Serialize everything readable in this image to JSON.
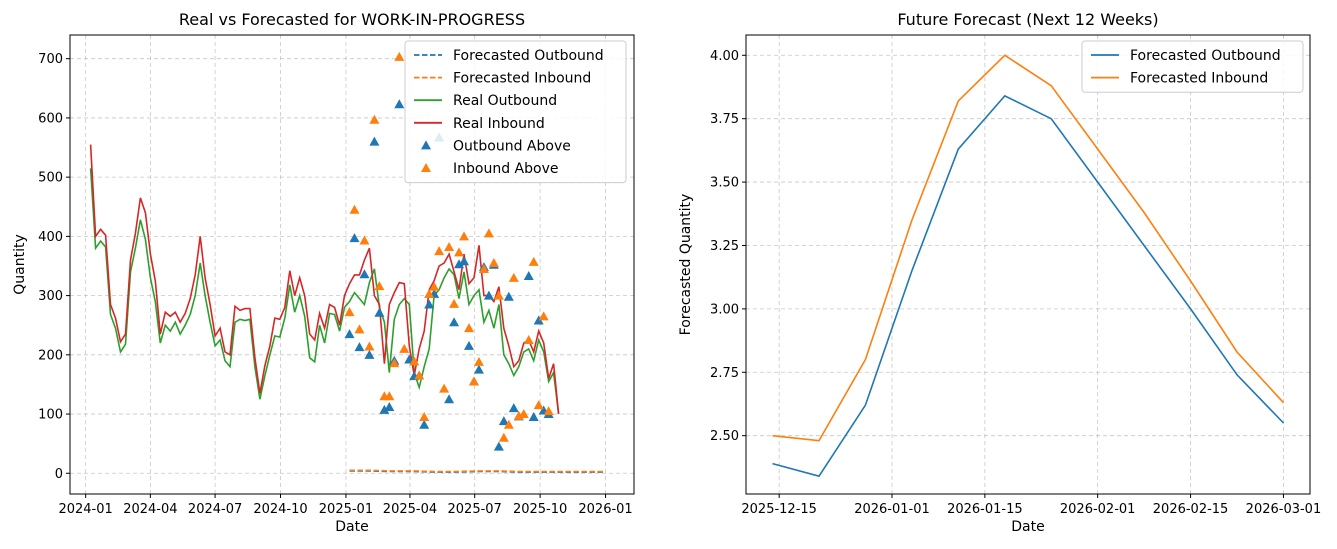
{
  "colors": {
    "outbound": "#1f77b4",
    "inbound": "#ff7f0e",
    "real_outbound": "#2ca02c",
    "real_inbound": "#d62728"
  },
  "chart_data": [
    {
      "type": "line",
      "title": "Real vs Forecasted for WORK-IN-PROGRESS",
      "xlabel": "Date",
      "ylabel": "Quantity",
      "xlim": [
        "2023-12-10",
        "2026-02-10"
      ],
      "ylim": [
        -35,
        740
      ],
      "xticks": [
        "2024-01",
        "2024-04",
        "2024-07",
        "2024-10",
        "2025-01",
        "2025-04",
        "2025-07",
        "2025-10",
        "2026-01"
      ],
      "yticks": [
        0,
        100,
        200,
        300,
        400,
        500,
        600,
        700
      ],
      "grid": true,
      "legend_position": "upper right",
      "legend": [
        "Forecasted Outbound",
        "Forecasted Inbound",
        "Real Outbound",
        "Real Inbound",
        "Outbound Above",
        "Inbound Above"
      ],
      "real_outbound": {
        "x": [
          "2024-01-08",
          "2024-01-15",
          "2024-01-22",
          "2024-01-29",
          "2024-02-05",
          "2024-02-12",
          "2024-02-19",
          "2024-02-26",
          "2024-03-04",
          "2024-03-11",
          "2024-03-18",
          "2024-03-25",
          "2024-04-01",
          "2024-04-08",
          "2024-04-15",
          "2024-04-22",
          "2024-04-29",
          "2024-05-06",
          "2024-05-13",
          "2024-05-20",
          "2024-05-27",
          "2024-06-03",
          "2024-06-10",
          "2024-06-17",
          "2024-06-24",
          "2024-07-01",
          "2024-07-08",
          "2024-07-15",
          "2024-07-22",
          "2024-07-29",
          "2024-08-05",
          "2024-08-12",
          "2024-08-19",
          "2024-08-26",
          "2024-09-02",
          "2024-09-09",
          "2024-09-16",
          "2024-09-23",
          "2024-09-30",
          "2024-10-07",
          "2024-10-14",
          "2024-10-21",
          "2024-10-28",
          "2024-11-04",
          "2024-11-11",
          "2024-11-18",
          "2024-11-25",
          "2024-12-02",
          "2024-12-09",
          "2024-12-16",
          "2024-12-23",
          "2024-12-30",
          "2025-01-06",
          "2025-01-13",
          "2025-01-20",
          "2025-01-27",
          "2025-02-03",
          "2025-02-10",
          "2025-02-17",
          "2025-02-24",
          "2025-03-03",
          "2025-03-10",
          "2025-03-17",
          "2025-03-24",
          "2025-03-31",
          "2025-04-07",
          "2025-04-14",
          "2025-04-21",
          "2025-04-28",
          "2025-05-05",
          "2025-05-12",
          "2025-05-19",
          "2025-05-26",
          "2025-06-02",
          "2025-06-09",
          "2025-06-16",
          "2025-06-23",
          "2025-06-30",
          "2025-07-07",
          "2025-07-14",
          "2025-07-21",
          "2025-07-28",
          "2025-08-04",
          "2025-08-11",
          "2025-08-18",
          "2025-08-25",
          "2025-09-01",
          "2025-09-08",
          "2025-09-15",
          "2025-09-22",
          "2025-09-29",
          "2025-10-06",
          "2025-10-13",
          "2025-10-20",
          "2025-10-27"
        ],
        "y": [
          515,
          380,
          392,
          382,
          268,
          245,
          205,
          218,
          340,
          380,
          428,
          395,
          330,
          290,
          220,
          250,
          240,
          255,
          235,
          250,
          268,
          300,
          355,
          300,
          255,
          215,
          225,
          190,
          180,
          255,
          260,
          258,
          260,
          180,
          125,
          165,
          200,
          232,
          230,
          262,
          318,
          272,
          300,
          265,
          195,
          188,
          250,
          220,
          270,
          268,
          240,
          280,
          290,
          305,
          295,
          285,
          322,
          345,
          280,
          255,
          170,
          260,
          285,
          295,
          285,
          170,
          145,
          180,
          210,
          300,
          310,
          330,
          345,
          335,
          295,
          340,
          285,
          300,
          310,
          255,
          275,
          245,
          285,
          200,
          185,
          165,
          180,
          205,
          210,
          190,
          225,
          205,
          155,
          170,
          100
        ]
      },
      "real_inbound": {
        "x": [
          "2024-01-08",
          "2024-01-15",
          "2024-01-22",
          "2024-01-29",
          "2024-02-05",
          "2024-02-12",
          "2024-02-19",
          "2024-02-26",
          "2024-03-04",
          "2024-03-11",
          "2024-03-18",
          "2024-03-25",
          "2024-04-01",
          "2024-04-08",
          "2024-04-15",
          "2024-04-22",
          "2024-04-29",
          "2024-05-06",
          "2024-05-13",
          "2024-05-20",
          "2024-05-27",
          "2024-06-03",
          "2024-06-10",
          "2024-06-17",
          "2024-06-24",
          "2024-07-01",
          "2024-07-08",
          "2024-07-15",
          "2024-07-22",
          "2024-07-29",
          "2024-08-05",
          "2024-08-12",
          "2024-08-19",
          "2024-08-26",
          "2024-09-02",
          "2024-09-09",
          "2024-09-16",
          "2024-09-23",
          "2024-09-30",
          "2024-10-07",
          "2024-10-14",
          "2024-10-21",
          "2024-10-28",
          "2024-11-04",
          "2024-11-11",
          "2024-11-18",
          "2024-11-25",
          "2024-12-02",
          "2024-12-09",
          "2024-12-16",
          "2024-12-23",
          "2024-12-30",
          "2025-01-06",
          "2025-01-13",
          "2025-01-20",
          "2025-01-27",
          "2025-02-03",
          "2025-02-10",
          "2025-02-17",
          "2025-02-24",
          "2025-03-03",
          "2025-03-10",
          "2025-03-17",
          "2025-03-24",
          "2025-03-31",
          "2025-04-07",
          "2025-04-14",
          "2025-04-21",
          "2025-04-28",
          "2025-05-05",
          "2025-05-12",
          "2025-05-19",
          "2025-05-26",
          "2025-06-02",
          "2025-06-09",
          "2025-06-16",
          "2025-06-23",
          "2025-06-30",
          "2025-07-07",
          "2025-07-14",
          "2025-07-21",
          "2025-07-28",
          "2025-08-04",
          "2025-08-11",
          "2025-08-18",
          "2025-08-25",
          "2025-09-01",
          "2025-09-08",
          "2025-09-15",
          "2025-09-22",
          "2025-09-29",
          "2025-10-06",
          "2025-10-13",
          "2025-10-20",
          "2025-10-27"
        ],
        "y": [
          555,
          400,
          412,
          402,
          285,
          262,
          222,
          235,
          360,
          405,
          465,
          440,
          370,
          325,
          235,
          272,
          265,
          272,
          255,
          270,
          295,
          335,
          400,
          330,
          285,
          232,
          245,
          205,
          200,
          282,
          275,
          278,
          278,
          195,
          135,
          182,
          215,
          262,
          260,
          280,
          342,
          300,
          330,
          300,
          235,
          225,
          270,
          245,
          285,
          280,
          250,
          300,
          320,
          335,
          335,
          360,
          380,
          300,
          285,
          185,
          285,
          305,
          322,
          320,
          215,
          165,
          210,
          240,
          310,
          325,
          350,
          355,
          370,
          340,
          310,
          370,
          320,
          330,
          385,
          300,
          300,
          290,
          315,
          245,
          215,
          180,
          190,
          220,
          225,
          205,
          240,
          220,
          160,
          185,
          100
        ]
      },
      "forecasted_outbound": {
        "x": [
          "2025-01-06",
          "2025-02-03",
          "2025-03-03",
          "2025-04-07",
          "2025-05-05",
          "2025-06-02",
          "2025-07-07",
          "2025-08-04",
          "2025-09-01",
          "2025-10-06",
          "2025-11-03",
          "2025-12-01",
          "2025-12-29"
        ],
        "y": [
          4,
          4,
          3,
          3,
          2,
          2,
          3,
          3,
          2,
          2,
          2,
          2,
          2
        ]
      },
      "forecasted_inbound": {
        "x": [
          "2025-01-06",
          "2025-02-03",
          "2025-03-03",
          "2025-04-07",
          "2025-05-05",
          "2025-06-02",
          "2025-07-07",
          "2025-08-04",
          "2025-09-01",
          "2025-10-06",
          "2025-11-03",
          "2025-12-01",
          "2025-12-29"
        ],
        "y": [
          5,
          5,
          4,
          4,
          3,
          3,
          4,
          4,
          3,
          3,
          3,
          3,
          3
        ]
      },
      "outbound_above": {
        "x": [
          "2025-01-06",
          "2025-01-13",
          "2025-01-20",
          "2025-01-27",
          "2025-02-03",
          "2025-02-10",
          "2025-02-17",
          "2025-02-24",
          "2025-03-03",
          "2025-03-10",
          "2025-03-17",
          "2025-03-31",
          "2025-04-07",
          "2025-04-14",
          "2025-04-21",
          "2025-04-28",
          "2025-05-05",
          "2025-05-12",
          "2025-05-26",
          "2025-06-02",
          "2025-06-09",
          "2025-06-16",
          "2025-06-23",
          "2025-06-30",
          "2025-07-07",
          "2025-07-14",
          "2025-07-21",
          "2025-07-28",
          "2025-08-04",
          "2025-08-11",
          "2025-08-18",
          "2025-08-25",
          "2025-09-01",
          "2025-09-15",
          "2025-09-22",
          "2025-09-29",
          "2025-10-06",
          "2025-10-13"
        ],
        "y": [
          235,
          397,
          213,
          336,
          200,
          560,
          271,
          107,
          112,
          190,
          623,
          192,
          164,
          165,
          82,
          285,
          303,
          567,
          125,
          255,
          353,
          358,
          215,
          155,
          175,
          348,
          300,
          352,
          45,
          88,
          298,
          110,
          96,
          333,
          95,
          258,
          106,
          100
        ]
      },
      "inbound_above": {
        "x": [
          "2025-01-06",
          "2025-01-13",
          "2025-01-20",
          "2025-01-27",
          "2025-02-03",
          "2025-02-10",
          "2025-02-17",
          "2025-02-24",
          "2025-03-03",
          "2025-03-10",
          "2025-03-17",
          "2025-03-24",
          "2025-04-07",
          "2025-04-14",
          "2025-04-21",
          "2025-04-28",
          "2025-05-05",
          "2025-05-12",
          "2025-05-19",
          "2025-05-26",
          "2025-06-02",
          "2025-06-09",
          "2025-06-16",
          "2025-06-23",
          "2025-06-30",
          "2025-07-07",
          "2025-07-14",
          "2025-07-21",
          "2025-07-28",
          "2025-08-04",
          "2025-08-11",
          "2025-08-18",
          "2025-08-25",
          "2025-09-01",
          "2025-09-08",
          "2025-09-15",
          "2025-09-22",
          "2025-09-29",
          "2025-10-06",
          "2025-10-13"
        ],
        "y": [
          272,
          445,
          243,
          393,
          214,
          597,
          316,
          130,
          130,
          186,
          703,
          210,
          189,
          165,
          95,
          303,
          315,
          375,
          143,
          382,
          286,
          373,
          400,
          245,
          155,
          188,
          345,
          405,
          355,
          300,
          60,
          82,
          330,
          97,
          100,
          225,
          357,
          115,
          265,
          105
        ]
      }
    },
    {
      "type": "line",
      "title": "Future Forecast (Next 12 Weeks)",
      "xlabel": "Date",
      "ylabel": "Forecasted Quantity",
      "xlim": [
        "2025-12-10",
        "2026-03-05"
      ],
      "ylim": [
        2.27,
        4.08
      ],
      "xticks": [
        "2025-12-15",
        "2026-01-01",
        "2026-01-15",
        "2026-02-01",
        "2026-02-15",
        "2026-03-01"
      ],
      "yticks": [
        "2.50",
        "2.75",
        "3.00",
        "3.25",
        "3.50",
        "3.75",
        "4.00"
      ],
      "grid": true,
      "legend_position": "upper right",
      "series": [
        {
          "name": "Forecasted Outbound",
          "x": [
            "2025-12-14",
            "2025-12-21",
            "2025-12-28",
            "2026-01-04",
            "2026-01-11",
            "2026-01-18",
            "2026-01-25",
            "2026-02-01",
            "2026-02-08",
            "2026-02-15",
            "2026-02-22",
            "2026-03-01"
          ],
          "values": [
            2.39,
            2.34,
            2.62,
            3.15,
            3.63,
            3.84,
            3.75,
            3.5,
            3.25,
            3.0,
            2.74,
            2.55
          ]
        },
        {
          "name": "Forecasted Inbound",
          "x": [
            "2025-12-14",
            "2025-12-21",
            "2025-12-28",
            "2026-01-04",
            "2026-01-11",
            "2026-01-18",
            "2026-01-25",
            "2026-02-01",
            "2026-02-08",
            "2026-02-15",
            "2026-02-22",
            "2026-03-01"
          ],
          "values": [
            2.5,
            2.48,
            2.8,
            3.35,
            3.82,
            4.0,
            3.88,
            3.63,
            3.38,
            3.11,
            2.83,
            2.63
          ]
        }
      ]
    }
  ]
}
